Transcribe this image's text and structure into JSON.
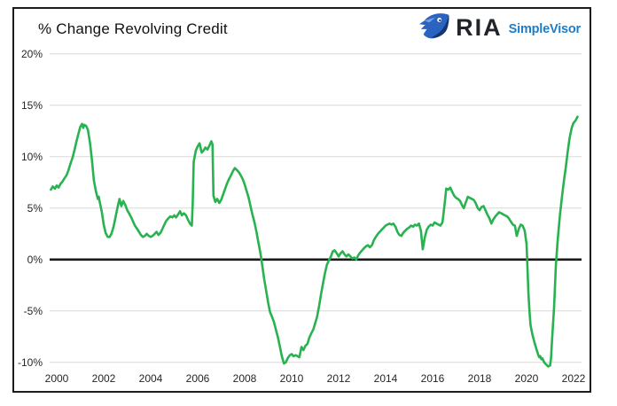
{
  "header": {
    "title": "% Change Revolving Credit",
    "brand": {
      "name": "RIA",
      "product": "SimpleVisor"
    }
  },
  "colors": {
    "line": "#28b250",
    "grid": "#d9d9d9",
    "zero_line": "#1a1a1a",
    "frame": "#1c1c1c",
    "axis_text": "#262626",
    "brand_name": "#212529",
    "brand_product": "#1e7dc8",
    "eagle_dark": "#16356f",
    "eagle_mid": "#2a63c0",
    "eagle_light": "#7fa9e6"
  },
  "chart_data": {
    "type": "line",
    "title": "% Change Revolving Credit",
    "xlabel": "",
    "ylabel": "",
    "grid": "horizontal",
    "legend": "none",
    "zero_baseline": true,
    "ylim": [
      -11,
      21
    ],
    "xlim": [
      1999.6,
      2022.5
    ],
    "x_tick_years": [
      2000,
      2002,
      2004,
      2006,
      2008,
      2010,
      2012,
      2014,
      2016,
      2018,
      2020,
      2022
    ],
    "x_tick_labels": [
      "2000",
      "2002",
      "2004",
      "2006",
      "2008",
      "2010",
      "2012",
      "2014",
      "2016",
      "2018",
      "2020",
      "2022"
    ],
    "y_tick_values": [
      20,
      15,
      10,
      5,
      0,
      -5,
      -10
    ],
    "y_tick_labels": [
      "20%",
      "15%",
      "10%",
      "5%",
      "0%",
      "-5%",
      "-10%"
    ],
    "series": [
      {
        "name": "% Change Revolving Credit",
        "color": "#28b250",
        "x": [
          1999.75,
          1999.83,
          1999.92,
          2000,
          2000.08,
          2000.17,
          2000.25,
          2000.33,
          2000.42,
          2000.5,
          2000.58,
          2000.67,
          2000.75,
          2000.83,
          2000.92,
          2001,
          2001.08,
          2001.13,
          2001.17,
          2001.25,
          2001.33,
          2001.42,
          2001.5,
          2001.58,
          2001.67,
          2001.75,
          2001.79,
          2001.83,
          2001.92,
          2002,
          2002.08,
          2002.17,
          2002.25,
          2002.33,
          2002.42,
          2002.5,
          2002.58,
          2002.67,
          2002.75,
          2002.83,
          2002.92,
          2003,
          2003.08,
          2003.17,
          2003.25,
          2003.33,
          2003.42,
          2003.5,
          2003.58,
          2003.67,
          2003.75,
          2003.83,
          2003.92,
          2004,
          2004.08,
          2004.17,
          2004.25,
          2004.33,
          2004.42,
          2004.5,
          2004.58,
          2004.67,
          2004.75,
          2004.83,
          2004.92,
          2005,
          2005.08,
          2005.17,
          2005.25,
          2005.33,
          2005.42,
          2005.5,
          2005.58,
          2005.67,
          2005.75,
          2005.79,
          2005.83,
          2005.92,
          2006,
          2006.08,
          2006.17,
          2006.25,
          2006.33,
          2006.42,
          2006.5,
          2006.58,
          2006.63,
          2006.67,
          2006.75,
          2006.83,
          2006.92,
          2007,
          2007.08,
          2007.17,
          2007.25,
          2007.33,
          2007.42,
          2007.5,
          2007.58,
          2007.67,
          2007.75,
          2007.83,
          2007.92,
          2008,
          2008.08,
          2008.17,
          2008.25,
          2008.33,
          2008.42,
          2008.5,
          2008.58,
          2008.67,
          2008.75,
          2008.83,
          2008.92,
          2009,
          2009.08,
          2009.17,
          2009.25,
          2009.33,
          2009.42,
          2009.5,
          2009.58,
          2009.67,
          2009.75,
          2009.83,
          2009.92,
          2010,
          2010.08,
          2010.17,
          2010.25,
          2010.33,
          2010.42,
          2010.5,
          2010.58,
          2010.67,
          2010.75,
          2010.83,
          2010.92,
          2011,
          2011.08,
          2011.17,
          2011.25,
          2011.33,
          2011.42,
          2011.5,
          2011.58,
          2011.67,
          2011.75,
          2011.83,
          2011.92,
          2012,
          2012.08,
          2012.17,
          2012.25,
          2012.33,
          2012.42,
          2012.5,
          2012.58,
          2012.67,
          2012.75,
          2012.83,
          2012.92,
          2013,
          2013.08,
          2013.17,
          2013.25,
          2013.33,
          2013.42,
          2013.5,
          2013.58,
          2013.67,
          2013.75,
          2013.83,
          2013.92,
          2014,
          2014.08,
          2014.17,
          2014.25,
          2014.33,
          2014.42,
          2014.5,
          2014.58,
          2014.67,
          2014.75,
          2014.83,
          2014.92,
          2015,
          2015.08,
          2015.17,
          2015.25,
          2015.33,
          2015.42,
          2015.5,
          2015.58,
          2015.67,
          2015.75,
          2015.83,
          2015.92,
          2016,
          2016.08,
          2016.17,
          2016.25,
          2016.33,
          2016.42,
          2016.5,
          2016.58,
          2016.67,
          2016.75,
          2016.83,
          2016.92,
          2017,
          2017.08,
          2017.17,
          2017.25,
          2017.33,
          2017.42,
          2017.5,
          2017.58,
          2017.67,
          2017.75,
          2017.83,
          2017.92,
          2018,
          2018.08,
          2018.17,
          2018.25,
          2018.33,
          2018.42,
          2018.5,
          2018.58,
          2018.67,
          2018.75,
          2018.83,
          2018.92,
          2019,
          2019.08,
          2019.17,
          2019.25,
          2019.33,
          2019.42,
          2019.5,
          2019.58,
          2019.67,
          2019.75,
          2019.83,
          2019.92,
          2020,
          2020.04,
          2020.08,
          2020.13,
          2020.17,
          2020.25,
          2020.33,
          2020.42,
          2020.5,
          2020.54,
          2020.58,
          2020.63,
          2020.67,
          2020.75,
          2020.83,
          2020.92,
          2021,
          2021.04,
          2021.08,
          2021.17,
          2021.25,
          2021.29,
          2021.33,
          2021.42,
          2021.5,
          2021.58,
          2021.67,
          2021.75,
          2021.83,
          2021.92,
          2022,
          2022.08,
          2022.17
        ],
        "values": [
          6.8,
          7.1,
          6.9,
          7.2,
          7,
          7.4,
          7.6,
          7.9,
          8.2,
          8.7,
          9.3,
          9.9,
          10.6,
          11.4,
          12.2,
          12.9,
          13.2,
          12.8,
          13.1,
          13,
          12.6,
          11.3,
          9.6,
          7.7,
          6.6,
          5.9,
          6.1,
          5.6,
          4.6,
          3.4,
          2.6,
          2.2,
          2.2,
          2.5,
          3.2,
          4.1,
          5,
          5.9,
          5.2,
          5.7,
          5.3,
          4.8,
          4.5,
          4.1,
          3.7,
          3.3,
          3,
          2.7,
          2.4,
          2.2,
          2.3,
          2.5,
          2.3,
          2.2,
          2.3,
          2.5,
          2.7,
          2.4,
          2.6,
          3,
          3.4,
          3.8,
          4,
          4.2,
          4.1,
          4.3,
          4.1,
          4.4,
          4.7,
          4.3,
          4.5,
          4.3,
          3.9,
          3.5,
          3.3,
          5.5,
          9.5,
          10.6,
          11,
          11.3,
          10.4,
          10.6,
          10.9,
          10.7,
          11.1,
          11.5,
          11.2,
          6.2,
          5.6,
          5.9,
          5.5,
          5.8,
          6.3,
          6.9,
          7.4,
          7.8,
          8.2,
          8.6,
          8.9,
          8.7,
          8.5,
          8.2,
          7.8,
          7.3,
          6.7,
          6,
          5.2,
          4.4,
          3.6,
          2.7,
          1.7,
          0.6,
          -0.6,
          -1.9,
          -3.1,
          -4.2,
          -5.1,
          -5.6,
          -6.1,
          -6.8,
          -7.6,
          -8.5,
          -9.4,
          -10.1,
          -10,
          -9.6,
          -9.3,
          -9.2,
          -9.4,
          -9.3,
          -9.4,
          -9.5,
          -8.5,
          -8.8,
          -8.4,
          -8.2,
          -7.6,
          -7.2,
          -6.8,
          -6.2,
          -5.6,
          -4.5,
          -3.4,
          -2.4,
          -1.3,
          -0.5,
          -0.1,
          0.3,
          0.8,
          0.9,
          0.6,
          0.3,
          0.6,
          0.8,
          0.5,
          0.3,
          0.5,
          0.3,
          0.1,
          0.2,
          0,
          0.4,
          0.7,
          0.9,
          1.1,
          1.3,
          1.4,
          1.2,
          1.4,
          1.9,
          2.2,
          2.5,
          2.7,
          2.9,
          3.1,
          3.3,
          3.4,
          3.5,
          3.4,
          3.5,
          3.2,
          2.7,
          2.4,
          2.3,
          2.6,
          2.8,
          3,
          3.1,
          3.3,
          3.2,
          3.4,
          3.3,
          3.5,
          2.8,
          1,
          2.2,
          2.9,
          3.2,
          3.4,
          3.3,
          3.6,
          3.5,
          3.4,
          3.3,
          3.6,
          5.2,
          6.9,
          6.8,
          7,
          6.6,
          6.2,
          6,
          5.9,
          5.7,
          5.3,
          5,
          5.6,
          6.1,
          6,
          5.9,
          5.8,
          5.5,
          5,
          4.8,
          5.1,
          5.2,
          4.8,
          4.4,
          4,
          3.5,
          3.9,
          4.2,
          4.4,
          4.6,
          4.5,
          4.4,
          4.3,
          4.2,
          4,
          3.7,
          3.4,
          3.3,
          2.3,
          3,
          3.4,
          3.3,
          2.8,
          1.5,
          -1,
          -3.3,
          -5.2,
          -6.4,
          -7.3,
          -8,
          -8.7,
          -9.3,
          -9.5,
          -9.4,
          -9.7,
          -9.6,
          -10,
          -10.2,
          -10.4,
          -10.3,
          -9.6,
          -8,
          -4.7,
          -0.5,
          0.8,
          2,
          4.3,
          6,
          7.5,
          9,
          10.5,
          11.8,
          12.8,
          13.3,
          13.5,
          13.9
        ]
      }
    ]
  }
}
